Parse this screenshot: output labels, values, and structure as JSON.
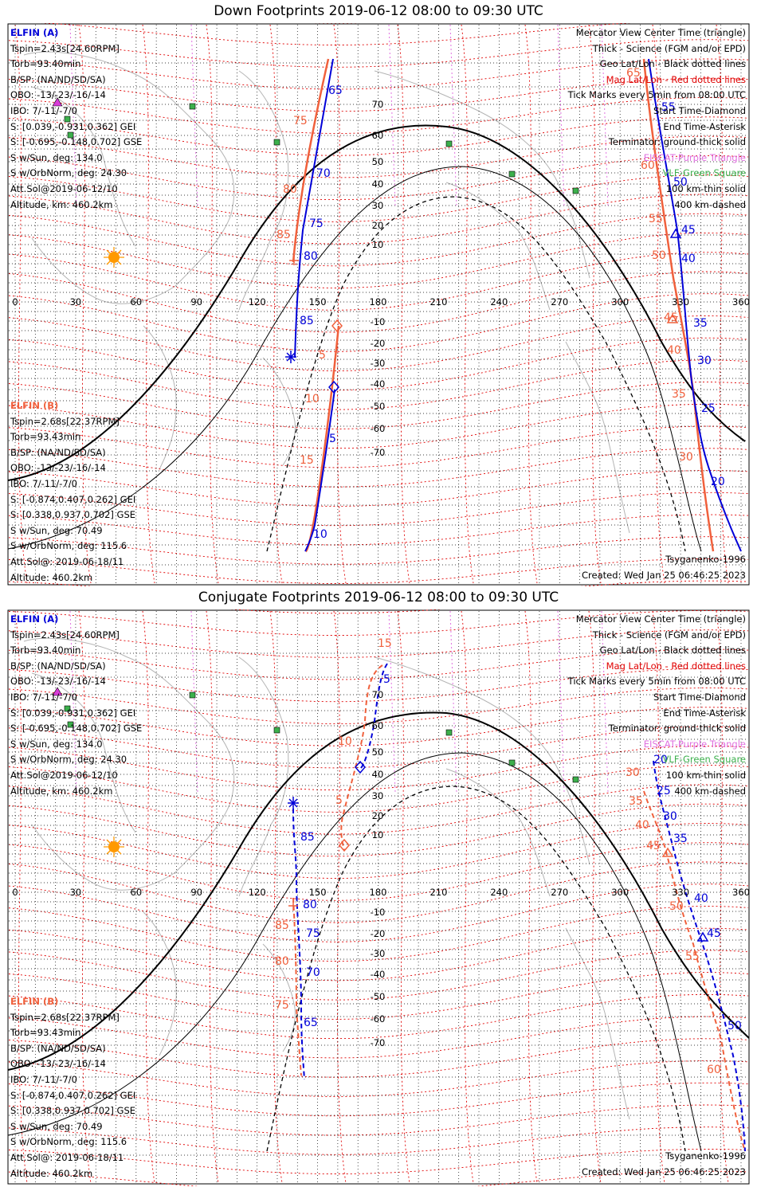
{
  "panels": [
    {
      "id": "down",
      "title": "Down Footprints 2019-06-12 08:00 to 09:30 UTC",
      "elfin_a": {
        "name": "ELFIN (A)",
        "lines": [
          "Tspin=2.43s[24.60RPM]",
          "Torb=93.40min",
          "B/SP: (NA/ND/SD/SA)",
          "OBO: -13/-23/-16/-14",
          "IBO: 7/-11/-7/0",
          "S: [0.039,-0.931,0.362] GEI",
          "S: [-0.695,-0.148,0.702] GSE",
          "S w/Sun, deg: 134.0",
          "S w/OrbNorm, deg: 24.30",
          "Att.Sol@2019-06-12/10",
          "Altitude, km: 460.2km"
        ]
      },
      "elfin_b": {
        "name": "ELFIN (B)",
        "lines": [
          "Tspin=2.68s[22.37RPM]",
          "Torb=93.43min",
          "B/SP: (NA/ND/SD/SA)",
          "OBO: -13/-23/-16/-14",
          "IBO: 7/-11/-7/0",
          "S: [-0.874,0.407,0.262] GEI",
          "S: [0.338,0.937,0.702] GSE",
          "S w/Sun, deg: 70.49",
          "S w/OrbNorm, deg: 115.6",
          "Att.Sol@: 2019-06-18/11",
          "Altitude: 460.2km"
        ]
      },
      "legend": [
        {
          "text": "Mercator View Center Time (triangle)",
          "color": "#000000"
        },
        {
          "text": "Thick - Science (FGM and/or EPD)",
          "color": "#000000"
        },
        {
          "text": "Geo Lat/Lon - Black dotted lines",
          "color": "#000000"
        },
        {
          "text": "Mag Lat/Lon - Red dotted lines",
          "color": "#e00000"
        },
        {
          "text": "Tick Marks every 5min from 08:00 UTC",
          "color": "#000000"
        },
        {
          "text": "Start Time-Diamond",
          "color": "#000000"
        },
        {
          "text": "End Time-Asterisk",
          "color": "#000000"
        },
        {
          "text": "Terminator: ground-thick solid",
          "color": "#000000"
        },
        {
          "text": "EISCAT-Purple Triangle",
          "color": "#e070e0"
        },
        {
          "text": "VLF-Green Square",
          "color": "#3cb04c"
        },
        {
          "text": "100 km-thin solid",
          "color": "#000000"
        },
        {
          "text": "400 km-dashed",
          "color": "#000000"
        }
      ],
      "model": "Tsyganenko-1996",
      "created": "Created: Wed Jan 25 06:46:25 2023",
      "lon_ticks": [
        "0",
        "30",
        "60",
        "90",
        "120",
        "150",
        "180",
        "210",
        "240",
        "270",
        "300",
        "330",
        "360"
      ],
      "lat_ticks": [
        "70",
        "60",
        "50",
        "40",
        "30",
        "20",
        "10",
        "-10",
        "-20",
        "-30",
        "-40",
        "-50",
        "-60",
        "-70"
      ],
      "track_a_labels": [
        "65",
        "70",
        "75",
        "80",
        "85",
        "5",
        "10",
        "55",
        "50",
        "45",
        "40",
        "35",
        "30",
        "25",
        "20"
      ],
      "track_b_labels": [
        "75",
        "80",
        "85",
        "5",
        "10",
        "15",
        "65",
        "60",
        "55",
        "50",
        "45",
        "40",
        "35",
        "30"
      ]
    },
    {
      "id": "conjugate",
      "title": "Conjugate Footprints 2019-06-12 08:00 to 09:30 UTC",
      "elfin_a": {
        "name": "ELFIN (A)",
        "lines": [
          "Tspin=2.43s[24.60RPM]",
          "Torb=93.40min",
          "B/SP: (NA/ND/SD/SA)",
          "OBO: -13/-23/-16/-14",
          "IBO: 7/-11/-7/0",
          "S: [0.039,-0.931,0.362] GEI",
          "S: [-0.695,-0.148,0.702] GSE",
          "S w/Sun, deg: 134.0",
          "S w/OrbNorm, deg: 24.30",
          "Att.Sol@2019-06-12/10",
          "Altitude, km: 460.2km"
        ]
      },
      "elfin_b": {
        "name": "ELFIN (B)",
        "lines": [
          "Tspin=2.68s[22.37RPM]",
          "Torb=93.43min",
          "B/SP: (NA/ND/SD/SA)",
          "OBO: -13/-23/-16/-14",
          "IBO: 7/-11/-7/0",
          "S: [-0.874,0.407,0.262] GEI",
          "S: [0.338,0.937,0.702] GSE",
          "S w/Sun, deg: 70.49",
          "S w/OrbNorm, deg: 115.6",
          "Att.Sol@: 2019-06-18/11",
          "Altitude: 460.2km"
        ]
      },
      "legend": [
        {
          "text": "Mercator View Center Time (triangle)",
          "color": "#000000"
        },
        {
          "text": "Thick - Science (FGM and/or EPD)",
          "color": "#000000"
        },
        {
          "text": "Geo Lat/Lon - Black dotted lines",
          "color": "#000000"
        },
        {
          "text": "Mag Lat/Lon - Red dotted lines",
          "color": "#e00000"
        },
        {
          "text": "Tick Marks every 5min from 08:00 UTC",
          "color": "#000000"
        },
        {
          "text": "Start Time-Diamond",
          "color": "#000000"
        },
        {
          "text": "End Time-Asterisk",
          "color": "#000000"
        },
        {
          "text": "Terminator: ground-thick solid",
          "color": "#000000"
        },
        {
          "text": "EISCAT-Purple Triangle",
          "color": "#e070e0"
        },
        {
          "text": "VLF-Green Square",
          "color": "#3cb04c"
        },
        {
          "text": "100 km-thin solid",
          "color": "#000000"
        },
        {
          "text": "400 km-dashed",
          "color": "#000000"
        }
      ],
      "model": "Tsyganenko-1996",
      "created": "Created: Wed Jan 25 06:46:25 2023",
      "lon_ticks": [
        "0",
        "30",
        "60",
        "90",
        "120",
        "150",
        "180",
        "210",
        "240",
        "270",
        "300",
        "330",
        "360"
      ],
      "lat_ticks": [
        "70",
        "60",
        "50",
        "40",
        "30",
        "20",
        "10",
        "-10",
        "-20",
        "-30",
        "-40",
        "-50",
        "-60",
        "-70"
      ],
      "track_a_labels": [
        "5",
        "85",
        "80",
        "75",
        "70",
        "65",
        "20",
        "25",
        "30",
        "35",
        "40",
        "45",
        "50"
      ],
      "track_b_labels": [
        "15",
        "10",
        "5",
        "85",
        "80",
        "75",
        "30",
        "35",
        "40",
        "45",
        "50",
        "55",
        "60"
      ]
    }
  ],
  "colors": {
    "elfin_a": "#0000d8",
    "elfin_b": "#f0603c",
    "mag_grid": "#e00000",
    "eiscat": "#e070e0",
    "vlf": "#3cb04c",
    "coast": "#b4b4b4",
    "sun": "#ff9900"
  }
}
